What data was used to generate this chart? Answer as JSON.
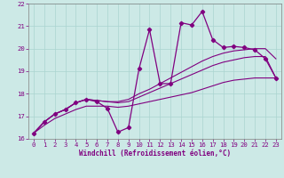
{
  "xlabel": "Windchill (Refroidissement éolien,°C)",
  "xlim": [
    -0.5,
    23.5
  ],
  "ylim": [
    16,
    22
  ],
  "yticks": [
    16,
    17,
    18,
    19,
    20,
    21,
    22
  ],
  "xticks": [
    0,
    1,
    2,
    3,
    4,
    5,
    6,
    7,
    8,
    9,
    10,
    11,
    12,
    13,
    14,
    15,
    16,
    17,
    18,
    19,
    20,
    21,
    22,
    23
  ],
  "background_color": "#cce9e6",
  "grid_color": "#aad4d0",
  "line_color": "#800080",
  "main_y": [
    16.25,
    16.75,
    17.1,
    17.3,
    17.6,
    17.75,
    17.65,
    17.35,
    16.3,
    16.5,
    19.1,
    20.85,
    18.45,
    18.45,
    21.15,
    21.05,
    21.65,
    20.4,
    20.05,
    20.1,
    20.05,
    19.95,
    19.55,
    18.7
  ],
  "smooth_top_y": [
    16.25,
    16.75,
    17.1,
    17.3,
    17.6,
    17.75,
    17.7,
    17.65,
    17.65,
    17.75,
    18.0,
    18.2,
    18.45,
    18.7,
    18.95,
    19.2,
    19.45,
    19.65,
    19.8,
    19.9,
    19.95,
    20.0,
    20.0,
    19.55
  ],
  "smooth_mid_y": [
    16.25,
    16.75,
    17.1,
    17.3,
    17.6,
    17.75,
    17.7,
    17.65,
    17.6,
    17.65,
    17.85,
    18.05,
    18.25,
    18.45,
    18.65,
    18.85,
    19.05,
    19.25,
    19.4,
    19.5,
    19.6,
    19.65,
    19.65,
    18.7
  ],
  "smooth_bot_y": [
    16.25,
    16.6,
    16.9,
    17.1,
    17.3,
    17.45,
    17.45,
    17.45,
    17.4,
    17.45,
    17.55,
    17.65,
    17.75,
    17.85,
    17.95,
    18.05,
    18.2,
    18.35,
    18.5,
    18.6,
    18.65,
    18.7,
    18.7,
    18.7
  ]
}
